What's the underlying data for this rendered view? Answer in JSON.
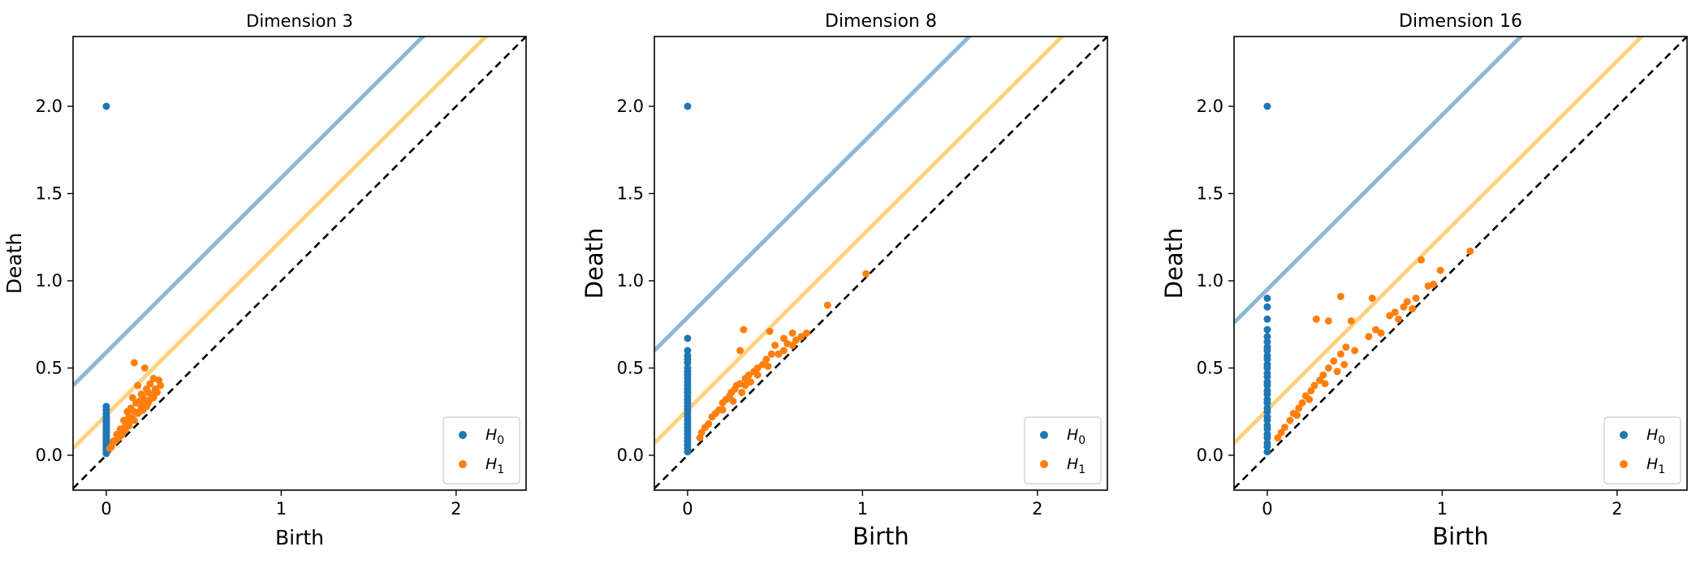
{
  "chart_data": [
    {
      "type": "scatter",
      "title": "Dimension 3",
      "xlabel": "Birth",
      "ylabel": "Death",
      "xlim": [
        -0.19,
        2.4
      ],
      "ylim": [
        -0.2,
        2.4
      ],
      "xticks": [
        "0",
        "1",
        "2"
      ],
      "yticks": [
        "0.0",
        "0.5",
        "1.0",
        "1.5",
        "2.0"
      ],
      "legend": {
        "position": "lower right",
        "entries": [
          "H0",
          "H1"
        ]
      },
      "series": [
        {
          "name": "H0",
          "color": "#1f77b4",
          "points": [
            [
              0,
              2.0
            ],
            [
              0,
              0.28
            ],
            [
              0,
              0.26
            ],
            [
              0,
              0.24
            ],
            [
              0,
              0.22
            ],
            [
              0,
              0.21
            ],
            [
              0,
              0.2
            ],
            [
              0,
              0.19
            ],
            [
              0,
              0.18
            ],
            [
              0,
              0.17
            ],
            [
              0,
              0.16
            ],
            [
              0,
              0.15
            ],
            [
              0,
              0.14
            ],
            [
              0,
              0.13
            ],
            [
              0,
              0.12
            ],
            [
              0,
              0.11
            ],
            [
              0,
              0.1
            ],
            [
              0,
              0.09
            ],
            [
              0,
              0.08
            ],
            [
              0,
              0.07
            ],
            [
              0,
              0.06
            ],
            [
              0,
              0.05
            ],
            [
              0,
              0.04
            ],
            [
              0,
              0.03
            ],
            [
              0,
              0.02
            ],
            [
              0,
              0.01
            ]
          ]
        },
        {
          "name": "H1",
          "color": "#ff7f0e",
          "points": [
            [
              0.16,
              0.53
            ],
            [
              0.22,
              0.5
            ],
            [
              0.18,
              0.4
            ],
            [
              0.27,
              0.44
            ],
            [
              0.3,
              0.43
            ],
            [
              0.25,
              0.41
            ],
            [
              0.2,
              0.35
            ],
            [
              0.23,
              0.38
            ],
            [
              0.28,
              0.38
            ],
            [
              0.31,
              0.4
            ],
            [
              0.24,
              0.36
            ],
            [
              0.26,
              0.35
            ],
            [
              0.15,
              0.33
            ],
            [
              0.19,
              0.31
            ],
            [
              0.21,
              0.33
            ],
            [
              0.29,
              0.36
            ],
            [
              0.17,
              0.3
            ],
            [
              0.12,
              0.25
            ],
            [
              0.14,
              0.27
            ],
            [
              0.22,
              0.3
            ],
            [
              0.25,
              0.32
            ],
            [
              0.1,
              0.2
            ],
            [
              0.13,
              0.22
            ],
            [
              0.16,
              0.25
            ],
            [
              0.2,
              0.28
            ],
            [
              0.24,
              0.3
            ],
            [
              0.27,
              0.33
            ],
            [
              0.08,
              0.15
            ],
            [
              0.11,
              0.17
            ],
            [
              0.14,
              0.2
            ],
            [
              0.18,
              0.24
            ],
            [
              0.21,
              0.26
            ],
            [
              0.23,
              0.28
            ],
            [
              0.06,
              0.12
            ],
            [
              0.09,
              0.14
            ],
            [
              0.12,
              0.18
            ],
            [
              0.15,
              0.21
            ],
            [
              0.19,
              0.25
            ],
            [
              0.04,
              0.08
            ],
            [
              0.07,
              0.1
            ],
            [
              0.1,
              0.14
            ],
            [
              0.13,
              0.17
            ],
            [
              0.16,
              0.2
            ],
            [
              0.03,
              0.05
            ],
            [
              0.05,
              0.08
            ],
            [
              0.08,
              0.11
            ],
            [
              0.11,
              0.15
            ],
            [
              0.06,
              0.09
            ],
            [
              0.02,
              0.04
            ],
            [
              0.09,
              0.12
            ]
          ]
        }
      ],
      "lines": [
        {
          "name": "confidence-band-H0",
          "color": "#8cb8d9",
          "intercept": 0.59
        },
        {
          "name": "confidence-band-H1",
          "color": "#ffd27f",
          "intercept": 0.23
        },
        {
          "name": "diagonal",
          "color": "#000000",
          "intercept": 0,
          "dashed": true
        }
      ]
    },
    {
      "type": "scatter",
      "title": "Dimension 8",
      "xlabel": "Birth",
      "ylabel": "Death",
      "xlim": [
        -0.19,
        2.4
      ],
      "ylim": [
        -0.2,
        2.4
      ],
      "xticks": [
        "0",
        "1",
        "2"
      ],
      "yticks": [
        "0.0",
        "0.5",
        "1.0",
        "1.5",
        "2.0"
      ],
      "legend": {
        "position": "lower right",
        "entries": [
          "H0",
          "H1"
        ]
      },
      "series": [
        {
          "name": "H0",
          "color": "#1f77b4",
          "points": [
            [
              0,
              2.0
            ],
            [
              0,
              0.67
            ],
            [
              0,
              0.6
            ],
            [
              0,
              0.57
            ],
            [
              0,
              0.55
            ],
            [
              0,
              0.53
            ],
            [
              0,
              0.5
            ],
            [
              0,
              0.48
            ],
            [
              0,
              0.46
            ],
            [
              0,
              0.44
            ],
            [
              0,
              0.42
            ],
            [
              0,
              0.4
            ],
            [
              0,
              0.38
            ],
            [
              0,
              0.36
            ],
            [
              0,
              0.34
            ],
            [
              0,
              0.32
            ],
            [
              0,
              0.3
            ],
            [
              0,
              0.28
            ],
            [
              0,
              0.26
            ],
            [
              0,
              0.24
            ],
            [
              0,
              0.22
            ],
            [
              0,
              0.2
            ],
            [
              0,
              0.18
            ],
            [
              0,
              0.16
            ],
            [
              0,
              0.14
            ],
            [
              0,
              0.12
            ],
            [
              0,
              0.1
            ],
            [
              0,
              0.08
            ],
            [
              0,
              0.06
            ],
            [
              0,
              0.04
            ],
            [
              0,
              0.02
            ]
          ]
        },
        {
          "name": "H1",
          "color": "#ff7f0e",
          "points": [
            [
              1.02,
              1.04
            ],
            [
              0.8,
              0.86
            ],
            [
              0.32,
              0.72
            ],
            [
              0.47,
              0.71
            ],
            [
              0.6,
              0.7
            ],
            [
              0.65,
              0.68
            ],
            [
              0.55,
              0.67
            ],
            [
              0.3,
              0.6
            ],
            [
              0.5,
              0.63
            ],
            [
              0.57,
              0.64
            ],
            [
              0.62,
              0.66
            ],
            [
              0.68,
              0.7
            ],
            [
              0.52,
              0.58
            ],
            [
              0.45,
              0.55
            ],
            [
              0.48,
              0.58
            ],
            [
              0.4,
              0.5
            ],
            [
              0.43,
              0.52
            ],
            [
              0.38,
              0.48
            ],
            [
              0.35,
              0.46
            ],
            [
              0.33,
              0.44
            ],
            [
              0.3,
              0.41
            ],
            [
              0.28,
              0.4
            ],
            [
              0.36,
              0.42
            ],
            [
              0.25,
              0.36
            ],
            [
              0.27,
              0.38
            ],
            [
              0.22,
              0.32
            ],
            [
              0.24,
              0.34
            ],
            [
              0.2,
              0.3
            ],
            [
              0.18,
              0.26
            ],
            [
              0.16,
              0.24
            ],
            [
              0.14,
              0.22
            ],
            [
              0.12,
              0.18
            ],
            [
              0.1,
              0.16
            ],
            [
              0.08,
              0.13
            ],
            [
              0.07,
              0.1
            ],
            [
              0.33,
              0.4
            ],
            [
              0.4,
              0.46
            ],
            [
              0.46,
              0.51
            ],
            [
              0.55,
              0.6
            ],
            [
              0.6,
              0.63
            ],
            [
              0.2,
              0.26
            ],
            [
              0.26,
              0.31
            ],
            [
              0.31,
              0.36
            ]
          ]
        }
      ],
      "lines": [
        {
          "name": "confidence-band-H0",
          "color": "#8cb8d9",
          "intercept": 0.79
        },
        {
          "name": "confidence-band-H1",
          "color": "#ffd27f",
          "intercept": 0.26
        },
        {
          "name": "diagonal",
          "color": "#000000",
          "intercept": 0,
          "dashed": true
        }
      ]
    },
    {
      "type": "scatter",
      "title": "Dimension 16",
      "xlabel": "Birth",
      "ylabel": "Death",
      "xlim": [
        -0.19,
        2.4
      ],
      "ylim": [
        -0.2,
        2.4
      ],
      "xticks": [
        "0",
        "1",
        "2"
      ],
      "yticks": [
        "0.0",
        "0.5",
        "1.0",
        "1.5",
        "2.0"
      ],
      "legend": {
        "position": "lower right",
        "entries": [
          "H0",
          "H1"
        ]
      },
      "series": [
        {
          "name": "H0",
          "color": "#1f77b4",
          "points": [
            [
              0,
              2.0
            ],
            [
              0,
              0.9
            ],
            [
              0,
              0.85
            ],
            [
              0,
              0.78
            ],
            [
              0,
              0.72
            ],
            [
              0,
              0.68
            ],
            [
              0,
              0.65
            ],
            [
              0,
              0.62
            ],
            [
              0,
              0.6
            ],
            [
              0,
              0.57
            ],
            [
              0,
              0.55
            ],
            [
              0,
              0.52
            ],
            [
              0,
              0.5
            ],
            [
              0,
              0.47
            ],
            [
              0,
              0.45
            ],
            [
              0,
              0.42
            ],
            [
              0,
              0.4
            ],
            [
              0,
              0.37
            ],
            [
              0,
              0.35
            ],
            [
              0,
              0.32
            ],
            [
              0,
              0.3
            ],
            [
              0,
              0.27
            ],
            [
              0,
              0.25
            ],
            [
              0,
              0.22
            ],
            [
              0,
              0.2
            ],
            [
              0,
              0.17
            ],
            [
              0,
              0.15
            ],
            [
              0,
              0.12
            ],
            [
              0,
              0.1
            ],
            [
              0,
              0.07
            ],
            [
              0,
              0.05
            ],
            [
              0,
              0.02
            ]
          ]
        },
        {
          "name": "H1",
          "color": "#ff7f0e",
          "points": [
            [
              1.16,
              1.17
            ],
            [
              0.88,
              1.12
            ],
            [
              0.99,
              1.06
            ],
            [
              0.42,
              0.91
            ],
            [
              0.95,
              0.98
            ],
            [
              0.92,
              0.97
            ],
            [
              0.6,
              0.9
            ],
            [
              0.8,
              0.88
            ],
            [
              0.85,
              0.9
            ],
            [
              0.78,
              0.85
            ],
            [
              0.73,
              0.82
            ],
            [
              0.7,
              0.8
            ],
            [
              0.75,
              0.78
            ],
            [
              0.83,
              0.84
            ],
            [
              0.48,
              0.77
            ],
            [
              0.28,
              0.78
            ],
            [
              0.35,
              0.77
            ],
            [
              0.65,
              0.7
            ],
            [
              0.58,
              0.68
            ],
            [
              0.62,
              0.72
            ],
            [
              0.45,
              0.62
            ],
            [
              0.5,
              0.6
            ],
            [
              0.42,
              0.58
            ],
            [
              0.38,
              0.54
            ],
            [
              0.44,
              0.52
            ],
            [
              0.35,
              0.5
            ],
            [
              0.32,
              0.46
            ],
            [
              0.3,
              0.43
            ],
            [
              0.27,
              0.4
            ],
            [
              0.25,
              0.37
            ],
            [
              0.22,
              0.34
            ],
            [
              0.2,
              0.3
            ],
            [
              0.18,
              0.27
            ],
            [
              0.15,
              0.24
            ],
            [
              0.13,
              0.2
            ],
            [
              0.1,
              0.16
            ],
            [
              0.08,
              0.13
            ],
            [
              0.06,
              0.1
            ],
            [
              0.4,
              0.48
            ],
            [
              0.33,
              0.41
            ],
            [
              0.24,
              0.32
            ],
            [
              0.17,
              0.23
            ]
          ]
        }
      ],
      "lines": [
        {
          "name": "confidence-band-H0",
          "color": "#8cb8d9",
          "intercept": 0.95
        },
        {
          "name": "confidence-band-H1",
          "color": "#ffd27f",
          "intercept": 0.26
        },
        {
          "name": "diagonal",
          "color": "#000000",
          "intercept": 0,
          "dashed": true
        }
      ]
    }
  ]
}
